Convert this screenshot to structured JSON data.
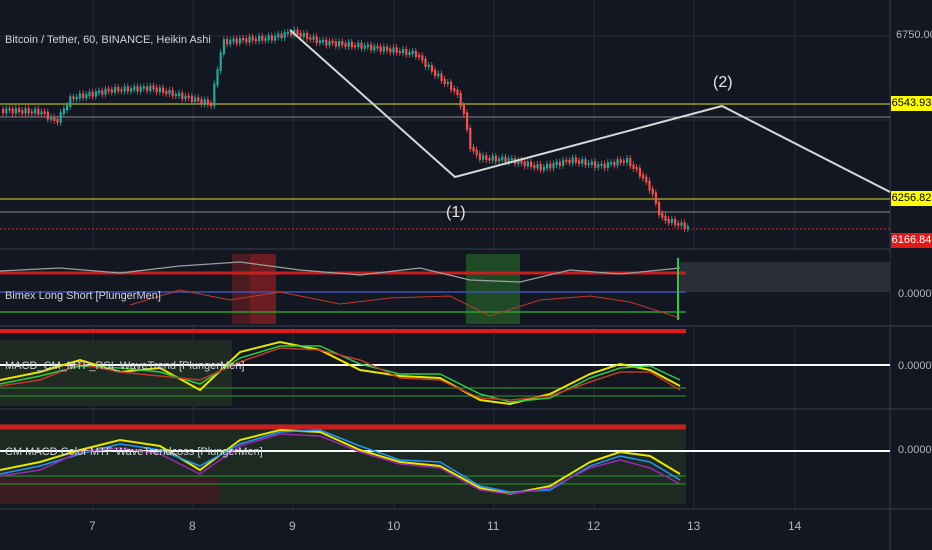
{
  "main_title": "Bitcoin / Tether, 60, BINANCE, Heikin Ashi",
  "price_axis": {
    "top_label": "6750.00",
    "tags": [
      {
        "label": "6543.93",
        "bg": "#ffff00",
        "fg": "#000000"
      },
      {
        "label": "6256.82",
        "bg": "#ffff00",
        "fg": "#000000"
      },
      {
        "label": "6166.84",
        "bg": "#e01919",
        "fg": "#ffffff"
      }
    ]
  },
  "wave_labels": {
    "wave1": "(1)",
    "wave2": "(2)"
  },
  "indicators": [
    {
      "title": "Bimex Long Short  [PlungerMen]",
      "axis_value": "0.0000"
    },
    {
      "title": "MACD_CM_MTF_RSI_WaveTrend [PlungerMen]",
      "axis_value": "0.0000"
    },
    {
      "title": "CM MACD Color MTF WaveTrendcoss [PlungerMen]",
      "axis_value": "0.0000"
    }
  ],
  "time_axis": [
    "7",
    "8",
    "9",
    "10",
    "11",
    "12",
    "13",
    "14"
  ],
  "colors": {
    "background": "#131722",
    "up_candle": "#26a69a",
    "down_candle": "#ef5350",
    "level_line": "#b5b52a",
    "wave_line": "#d8d8d8"
  }
}
